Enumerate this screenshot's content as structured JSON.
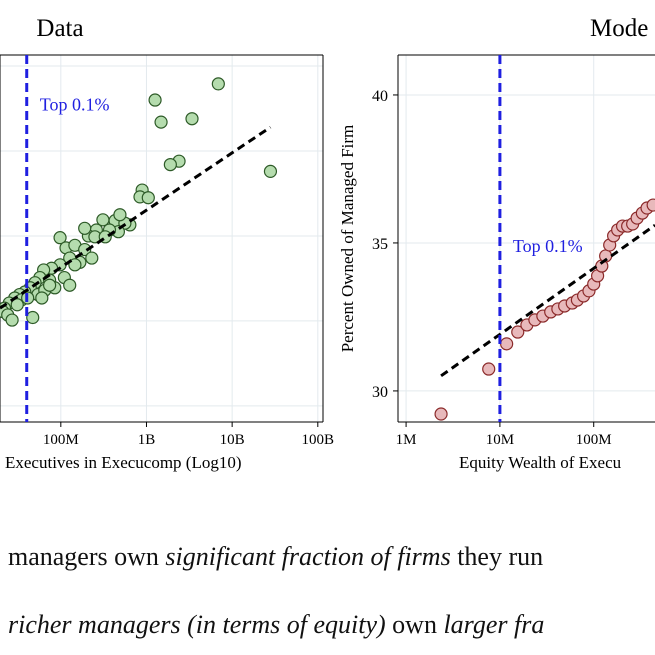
{
  "chart_data": [
    {
      "type": "scatter",
      "title": "Data",
      "xlabel": "Executives in Execucomp (Log10)",
      "xscale": "log",
      "xlim": [
        19500000,
        115000000000
      ],
      "xticks": [
        {
          "value": 100000000,
          "label": "100M"
        },
        {
          "value": 1000000000,
          "label": "1B"
        },
        {
          "value": 10000000000,
          "label": "10B"
        },
        {
          "value": 100000000000,
          "label": "100B"
        }
      ],
      "ylim": [
        0.81,
        5.13
      ],
      "yticks": [
        1,
        2,
        3,
        4,
        5
      ],
      "show_ytick_labels": false,
      "grid": true,
      "series": [
        {
          "color": "#b5dcae",
          "edgecolor": "#2d5a27",
          "x": [
            6900000000,
            1260000000,
            1480000000,
            3400000000,
            28000000000,
            2400000000,
            1900000000,
            890000000,
            840000000,
            1050000000,
            640000000,
            430000000,
            560000000,
            470000000,
            310000000,
            370000000,
            260000000,
            210000000,
            98000000,
            115000000,
            146000000,
            190000000,
            230000000,
            127000000,
            167000000,
            98000000,
            78000000,
            63000000,
            57000000,
            74000000,
            110000000,
            127000000,
            50000000,
            44000000,
            38000000,
            33000000,
            29000000,
            25000000,
            22000000,
            21000000,
            54000000,
            65000000,
            85000000,
            47000000,
            35000000,
            31000000,
            24000000,
            27000000,
            41000000,
            60000000,
            250000000,
            330000000,
            490000000,
            190000000,
            146000000,
            74000000
          ],
          "values": [
            4.79,
            4.6,
            4.34,
            4.38,
            3.76,
            3.88,
            3.84,
            3.54,
            3.46,
            3.45,
            3.13,
            3.18,
            3.15,
            3.05,
            3.19,
            3.07,
            3.07,
            3.0,
            2.98,
            2.86,
            2.89,
            2.84,
            2.74,
            2.74,
            2.69,
            2.66,
            2.62,
            2.6,
            2.51,
            2.48,
            2.51,
            2.42,
            2.45,
            2.39,
            2.34,
            2.31,
            2.27,
            2.21,
            2.15,
            2.11,
            2.31,
            2.36,
            2.39,
            2.04,
            2.25,
            2.19,
            2.07,
            2.01,
            2.27,
            2.27,
            2.99,
            2.99,
            3.25,
            3.09,
            2.66,
            2.42
          ]
        }
      ],
      "fit": {
        "color": "#000000",
        "x": [
          19500000,
          28000000000
        ],
        "y": [
          2.15,
          4.28
        ]
      },
      "vline": {
        "x": 40000000,
        "color": "#1f1fe0",
        "label": "Top 0.1%",
        "label_y": 4.55
      }
    },
    {
      "type": "scatter",
      "title": "Mode",
      "xlabel": "Equity Wealth of Execu",
      "ylabel": "Percent Owned of Managed Firm",
      "xscale": "log",
      "xlim": [
        820000,
        450000000
      ],
      "xticks": [
        {
          "value": 1000000,
          "label": "1M"
        },
        {
          "value": 10000000,
          "label": "10M"
        },
        {
          "value": 100000000,
          "label": "100M"
        }
      ],
      "ylim": [
        28.95,
        41.35
      ],
      "yticks": [
        30,
        35,
        40
      ],
      "show_ytick_labels": true,
      "grid": true,
      "series": [
        {
          "color": "#e8b9bb",
          "edgecolor": "#8b2a2a",
          "x": [
            2360000,
            7600000,
            11800000,
            15500000,
            19400000,
            23600000,
            28700000,
            34800000,
            41500000,
            49000000,
            59000000,
            67000000,
            78000000,
            89000000,
            100000000,
            110000000,
            122000000,
            134000000,
            148000000,
            163000000,
            180000000,
            203000000,
            230000000,
            260000000,
            290000000,
            330000000,
            370000000,
            430000000
          ],
          "values": [
            29.22,
            30.74,
            31.59,
            31.99,
            32.23,
            32.4,
            32.53,
            32.67,
            32.77,
            32.87,
            32.97,
            33.07,
            33.21,
            33.38,
            33.61,
            33.89,
            34.22,
            34.56,
            34.93,
            35.24,
            35.44,
            35.57,
            35.57,
            35.64,
            35.84,
            36.01,
            36.18,
            36.28
          ]
        }
      ],
      "fit": {
        "color": "#000000",
        "x": [
          2360000,
          450000000
        ],
        "y": [
          30.51,
          35.6
        ]
      },
      "vline": {
        "x": 10000000,
        "color": "#1f1fe0",
        "label": "Top 0.1%",
        "label_y": 34.9
      }
    }
  ],
  "text": {
    "lines": [
      [
        "managers own ",
        "significant fraction of firms",
        " they run"
      ],
      [
        "richer managers (in terms of equity)",
        " own ",
        "larger fra"
      ]
    ]
  }
}
